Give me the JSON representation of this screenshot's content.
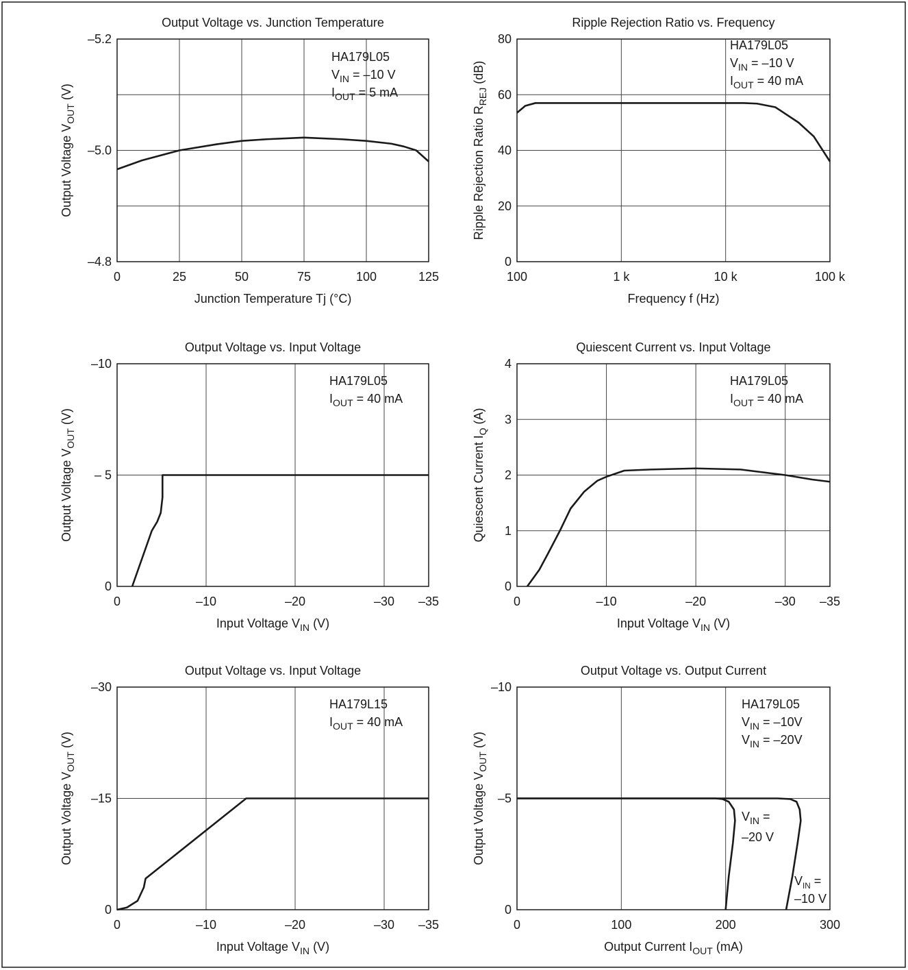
{
  "chart_data": [
    {
      "type": "line",
      "title": "Output Voltage vs. Junction Temperature",
      "xlabel": [
        "Junction Temperature Tj (°C)"
      ],
      "ylabel": [
        "Output Voltage V",
        "OUT",
        " (V)"
      ],
      "annotation": [
        [
          "HA179L05"
        ],
        [
          "V",
          "IN",
          " = –10 V"
        ],
        [
          "I",
          "OUT",
          " = 5 mA"
        ]
      ],
      "x": [
        0,
        10,
        25,
        40,
        50,
        60,
        75,
        90,
        100,
        110,
        115,
        120,
        125
      ],
      "values": [
        -4.966,
        -4.982,
        -5.0,
        -5.011,
        -5.017,
        -5.02,
        -5.023,
        -5.02,
        -5.017,
        -5.012,
        -5.007,
        -5.0,
        -4.98
      ],
      "color": "#1a1a1a",
      "xlim": [
        0,
        125
      ],
      "xticks": [
        0,
        25,
        50,
        75,
        100,
        125
      ],
      "ylim": [
        -4.8,
        -5.2
      ],
      "yticks": [
        {
          "value": -4.8,
          "label": "–4.8"
        },
        {
          "value": -4.9,
          "label": null
        },
        {
          "value": -5.0,
          "label": "–5.0"
        },
        {
          "value": -5.1,
          "label": null
        },
        {
          "value": -5.2,
          "label": "–5.2"
        }
      ],
      "grid": true
    },
    {
      "type": "line",
      "title": "Ripple Rejection Ratio vs. Frequency",
      "xlabel": [
        "Frequency f (Hz)"
      ],
      "ylabel": [
        "Ripple Rejection Ratio R",
        "REJ",
        " (dB)"
      ],
      "annotation": [
        [
          "HA179L05"
        ],
        [
          "V",
          "IN",
          " = –10 V"
        ],
        [
          "I",
          "OUT",
          " = 40 mA"
        ]
      ],
      "x": [
        100,
        120,
        150,
        300,
        1000,
        3000,
        10000,
        15000,
        20000,
        30000,
        50000,
        70000,
        100000
      ],
      "values": [
        53.5,
        56,
        57,
        57,
        57,
        57,
        57,
        57,
        56.8,
        55.5,
        50,
        45,
        36
      ],
      "color": "#1a1a1a",
      "xscale": "log",
      "xlim": [
        100,
        100000
      ],
      "xticks": [
        100,
        {
          "value": 1000,
          "label": "1 k"
        },
        {
          "value": 10000,
          "label": "10 k"
        },
        {
          "value": 100000,
          "label": "100 k"
        }
      ],
      "ylim": [
        0,
        80
      ],
      "yticks": [
        0,
        20,
        40,
        60,
        80
      ],
      "grid": true
    },
    {
      "type": "line",
      "title": "Output Voltage vs. Input Voltage",
      "xlabel": [
        "Input Voltage V",
        "IN",
        " (V)"
      ],
      "ylabel": [
        "Output Voltage V",
        "OUT",
        " (V)"
      ],
      "annotation": [
        [
          "HA179L05"
        ],
        [
          "I",
          "OUT",
          " = 40 mA"
        ]
      ],
      "x": [
        -1.7,
        -3.9,
        -4.5,
        -4.9,
        -5.1,
        -5.1,
        -35
      ],
      "values": [
        0,
        -2.5,
        -2.9,
        -3.3,
        -4.0,
        -5,
        -5
      ],
      "color": "#1a1a1a",
      "xlim": [
        0,
        -35
      ],
      "xticks": [
        0,
        {
          "value": -10,
          "label": "–10"
        },
        {
          "value": -20,
          "label": "–20"
        },
        {
          "value": -30,
          "label": "–30"
        },
        {
          "value": -35,
          "label": "–35"
        }
      ],
      "ylim": [
        0,
        -10
      ],
      "yticks": [
        0,
        {
          "value": -5,
          "label": "– 5"
        },
        {
          "value": -10,
          "label": "–10"
        }
      ],
      "grid": true
    },
    {
      "type": "line",
      "title": "Quiescent Current vs. Input Voltage",
      "xlabel": [
        "Input Voltage V",
        "IN",
        " (V)"
      ],
      "ylabel": [
        "Quiescent Current I",
        "Q",
        " (A)"
      ],
      "annotation": [
        [
          "HA179L05"
        ],
        [
          "I",
          "OUT",
          " = 40 mA"
        ]
      ],
      "x": [
        -1.15,
        -2.5,
        -3.5,
        -4.8,
        -6,
        -7.5,
        -9,
        -10,
        -12,
        -15,
        -20,
        -25,
        -30,
        -33,
        -35
      ],
      "values": [
        0,
        0.3,
        0.6,
        1.0,
        1.4,
        1.7,
        1.9,
        1.97,
        2.08,
        2.1,
        2.12,
        2.1,
        2.0,
        1.92,
        1.88
      ],
      "color": "#1a1a1a",
      "xlim": [
        0,
        -35
      ],
      "xticks": [
        0,
        {
          "value": -10,
          "label": "–10"
        },
        {
          "value": -20,
          "label": "–20"
        },
        {
          "value": -30,
          "label": "–30"
        },
        {
          "value": -35,
          "label": "–35"
        }
      ],
      "ylim": [
        0,
        4
      ],
      "yticks": [
        0,
        1,
        2,
        3,
        4
      ],
      "grid": true
    },
    {
      "type": "line",
      "title": "Output Voltage vs. Input Voltage",
      "xlabel": [
        "Input Voltage V",
        "IN",
        " (V)"
      ],
      "ylabel": [
        "Output Voltage V",
        "OUT",
        " (V)"
      ],
      "annotation": [
        [
          "HA179L15"
        ],
        [
          "I",
          "OUT",
          " = 40 mA"
        ]
      ],
      "x": [
        0,
        -1.1,
        -2.3,
        -3.0,
        -3.2,
        -14.5,
        -35
      ],
      "values": [
        0,
        -0.3,
        -1.2,
        -3.0,
        -4.2,
        -15,
        -15
      ],
      "color": "#1a1a1a",
      "xlim": [
        0,
        -35
      ],
      "xticks": [
        0,
        {
          "value": -10,
          "label": "–10"
        },
        {
          "value": -20,
          "label": "–20"
        },
        {
          "value": -30,
          "label": "–30"
        },
        {
          "value": -35,
          "label": "–35"
        }
      ],
      "ylim": [
        0,
        -30
      ],
      "yticks": [
        0,
        {
          "value": -15,
          "label": "–15"
        },
        {
          "value": -30,
          "label": "–30"
        }
      ],
      "grid": true
    },
    {
      "type": "line",
      "title": "Output Voltage vs. Output Current",
      "xlabel": [
        "Output Current I",
        "OUT",
        " (mA)"
      ],
      "ylabel": [
        "Output Voltage V",
        "OUT",
        " (V)"
      ],
      "annotation": [
        [
          "HA179L05"
        ],
        [
          "V",
          "IN",
          " = –10V"
        ],
        [
          "V",
          "IN",
          " = –20V"
        ]
      ],
      "series": [
        {
          "name": [
            [
              "V",
              "IN",
              " ="
            ],
            [
              "–20 V"
            ]
          ],
          "color": "#1a1a1a",
          "x": [
            0,
            190,
            197,
            203,
            208,
            209,
            207,
            203,
            200
          ],
          "values": [
            -5,
            -5,
            -4.97,
            -4.85,
            -4.5,
            -4,
            -3,
            -1.5,
            0
          ]
        },
        {
          "name": [
            [
              "V",
              "IN",
              " ="
            ],
            [
              "–10 V"
            ]
          ],
          "color": "#1a1a1a",
          "x": [
            0,
            250,
            262,
            268,
            271,
            272,
            269,
            264,
            258
          ],
          "values": [
            -5,
            -5,
            -4.97,
            -4.85,
            -4.5,
            -4,
            -3,
            -1.5,
            0
          ]
        }
      ],
      "xlim": [
        0,
        300
      ],
      "xticks": [
        0,
        100,
        200,
        300
      ],
      "ylim": [
        0,
        -10
      ],
      "yticks": [
        0,
        {
          "value": -5,
          "label": "–5"
        },
        {
          "value": -10,
          "label": "–10"
        }
      ],
      "grid": true
    }
  ]
}
